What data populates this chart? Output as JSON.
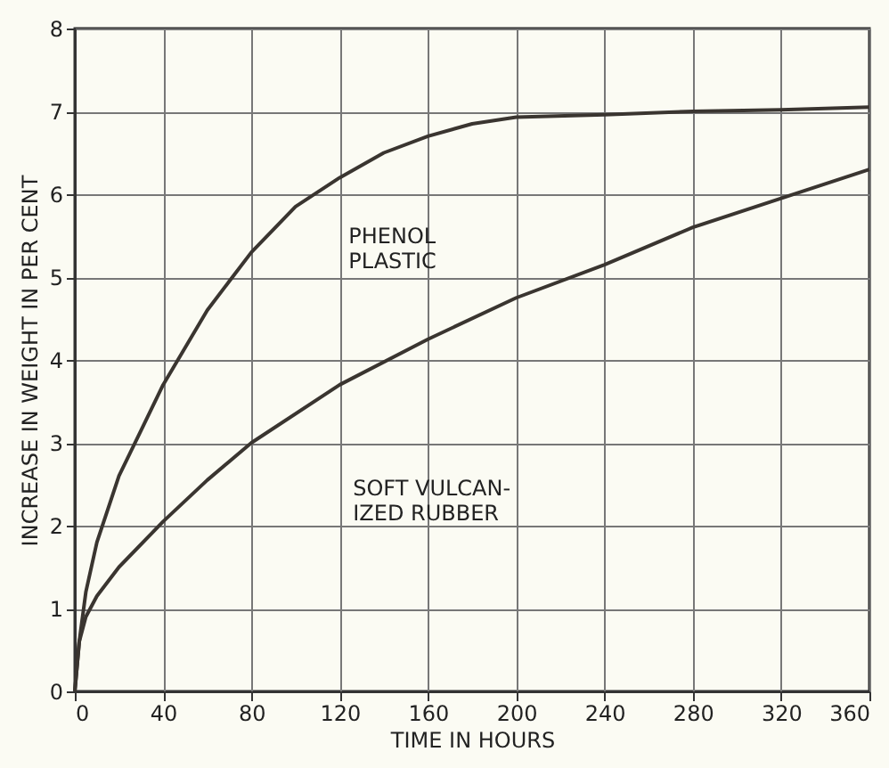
{
  "chart_data": {
    "type": "line",
    "xlabel": "TIME IN HOURS",
    "ylabel": "INCREASE IN WEIGHT IN PER CENT",
    "xlim": [
      0,
      360
    ],
    "xticks": [
      0,
      40,
      80,
      120,
      160,
      200,
      240,
      280,
      320,
      360
    ],
    "ylim": [
      0,
      8
    ],
    "yticks": [
      0,
      1,
      2,
      3,
      4,
      5,
      6,
      7,
      8
    ],
    "grid": true,
    "marker": "none",
    "line_style": "solid",
    "series": [
      {
        "color": "#3a3530",
        "x": [
          0,
          2,
          5,
          10,
          20,
          30,
          40,
          60,
          80,
          100,
          120,
          140,
          160,
          180,
          200,
          240,
          280,
          320,
          360
        ],
        "values": [
          0,
          0.6,
          1.2,
          1.8,
          2.6,
          3.15,
          3.7,
          4.6,
          5.3,
          5.85,
          6.2,
          6.5,
          6.7,
          6.85,
          6.93,
          6.96,
          7.0,
          7.02,
          7.05
        ]
      },
      {
        "color": "#3a3530",
        "x": [
          0,
          2,
          5,
          10,
          20,
          40,
          60,
          80,
          120,
          160,
          200,
          240,
          280,
          320,
          360
        ],
        "values": [
          0,
          0.6,
          0.9,
          1.15,
          1.5,
          2.05,
          2.55,
          3.0,
          3.7,
          4.25,
          4.75,
          5.15,
          5.6,
          5.95,
          6.3
        ]
      }
    ],
    "annotations": [
      "PHENOL\nPLASTIC",
      "SOFT VULCAN-\nIZED RUBBER"
    ]
  }
}
